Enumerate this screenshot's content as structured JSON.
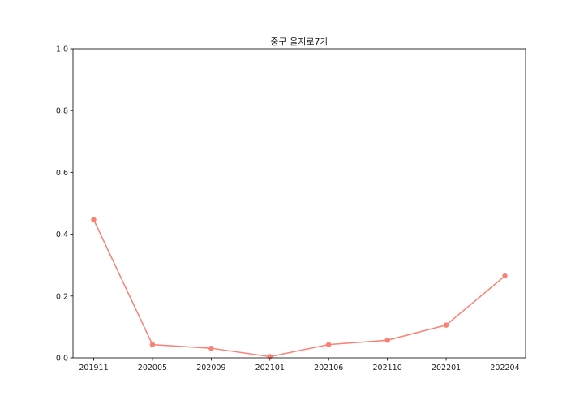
{
  "chart_data": {
    "type": "line",
    "title": "중구 을지로7가",
    "xlabel": "",
    "ylabel": "",
    "categories": [
      "201911",
      "202005",
      "202009",
      "202101",
      "202106",
      "202110",
      "202201",
      "202204"
    ],
    "series": [
      {
        "values": [
          0.447,
          0.043,
          0.031,
          0.004,
          0.043,
          0.057,
          0.106,
          0.265
        ],
        "color": "#fa8072"
      }
    ],
    "ylim": [
      0,
      1.0
    ],
    "yticks": [
      "0.0",
      "0.2",
      "0.4",
      "0.6",
      "0.8",
      "1.0"
    ],
    "grid": false,
    "legend": "none"
  }
}
